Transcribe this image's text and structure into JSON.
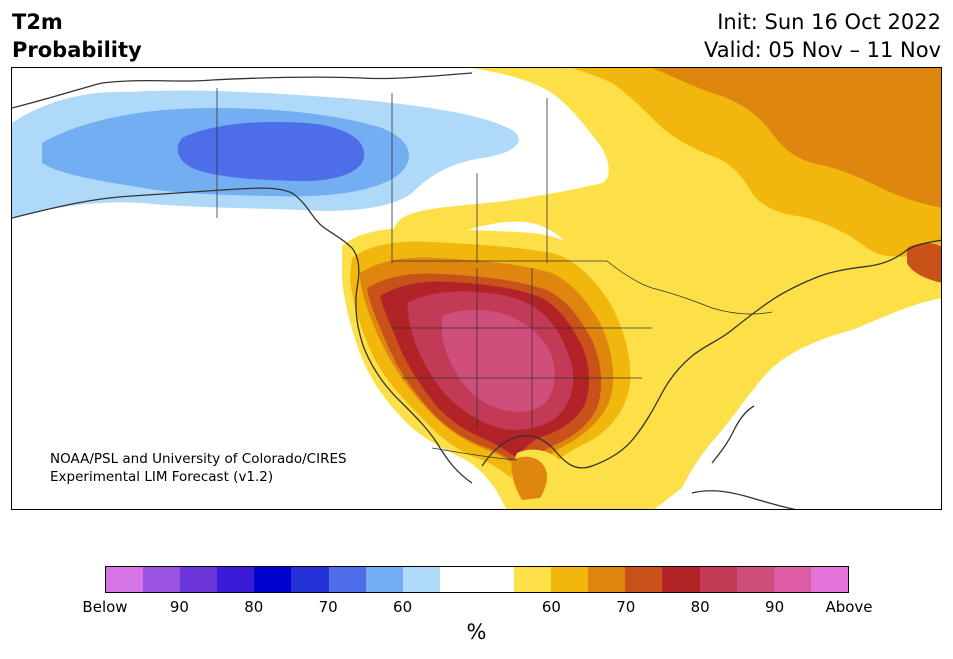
{
  "header": {
    "variable": "T2m",
    "product": "Probability",
    "init": "Init: Sun 16 Oct 2022",
    "valid": "Valid: 05 Nov – 11 Nov"
  },
  "credit": {
    "line1": "NOAA/PSL and University of Colorado/CIRES",
    "line2": "Experimental LIM Forecast (v1.2)"
  },
  "colorbar": {
    "segments": [
      "#d575e6",
      "#9a52e0",
      "#6a36da",
      "#3a1ad8",
      "#0000cc",
      "#2432d8",
      "#4d6ee8",
      "#73aef2",
      "#aed9f9",
      "#ffffff",
      "#ffffff",
      "#fde048",
      "#f2b70d",
      "#df860f",
      "#c9521a",
      "#b22328",
      "#c23a55",
      "#d04e7c",
      "#dc5ca6",
      "#e575d9"
    ],
    "labels": [
      {
        "text": "Below",
        "frac": 0.0
      },
      {
        "text": "90",
        "frac": 0.1
      },
      {
        "text": "80",
        "frac": 0.2
      },
      {
        "text": "70",
        "frac": 0.3
      },
      {
        "text": "60",
        "frac": 0.4
      },
      {
        "text": "60",
        "frac": 0.6
      },
      {
        "text": "70",
        "frac": 0.7
      },
      {
        "text": "80",
        "frac": 0.8
      },
      {
        "text": "90",
        "frac": 0.9
      },
      {
        "text": "Above",
        "frac": 1.0
      }
    ],
    "units": "%"
  },
  "colors": {
    "below_60": "#aed9f9",
    "below_70": "#73aef2",
    "below_80": "#4d6ee8",
    "above_60": "#fde048",
    "above_70": "#f2b70d",
    "above_75": "#df860f",
    "above_80": "#c9521a",
    "above_85": "#b22328",
    "above_90": "#c23a55",
    "above_95": "#d04e7c"
  }
}
